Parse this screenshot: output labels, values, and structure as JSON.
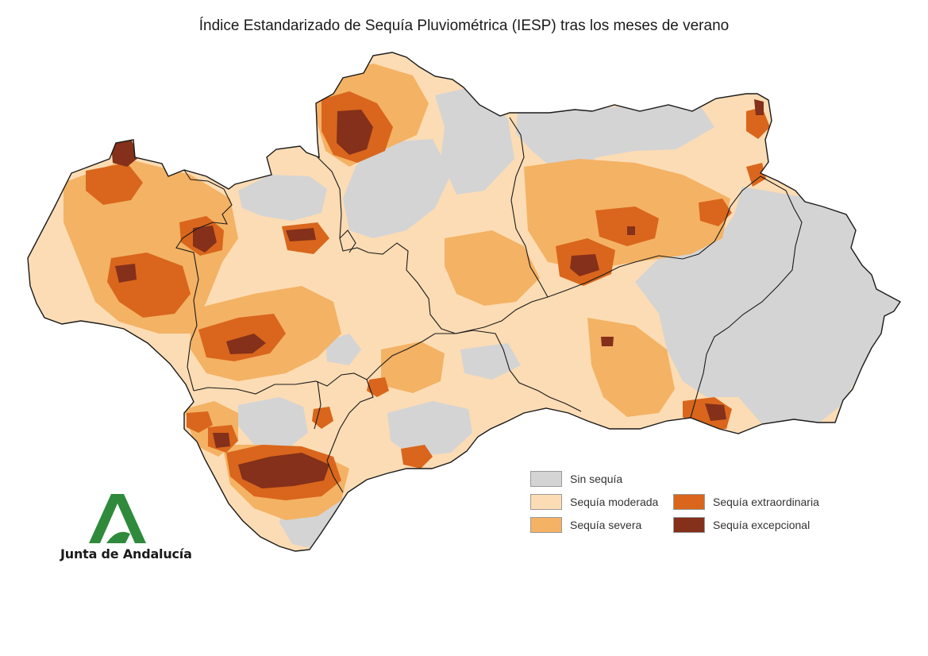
{
  "title": "Índice Estandarizado de Sequía Pluviométrica (IESP) tras los meses de verano",
  "legend": [
    {
      "label": "Sin sequía",
      "color": "#d4d4d4"
    },
    {
      "label": "Sequía moderada",
      "color": "#fcdcb4"
    },
    {
      "label": "Sequía severa",
      "color": "#f4b264"
    },
    {
      "label": "Sequía extraordinaria",
      "color": "#d9661c"
    },
    {
      "label": "Sequía excepcional",
      "color": "#84301a"
    }
  ],
  "logo": {
    "text": "Junta de Andalucía",
    "color": "#2f8a3c"
  }
}
